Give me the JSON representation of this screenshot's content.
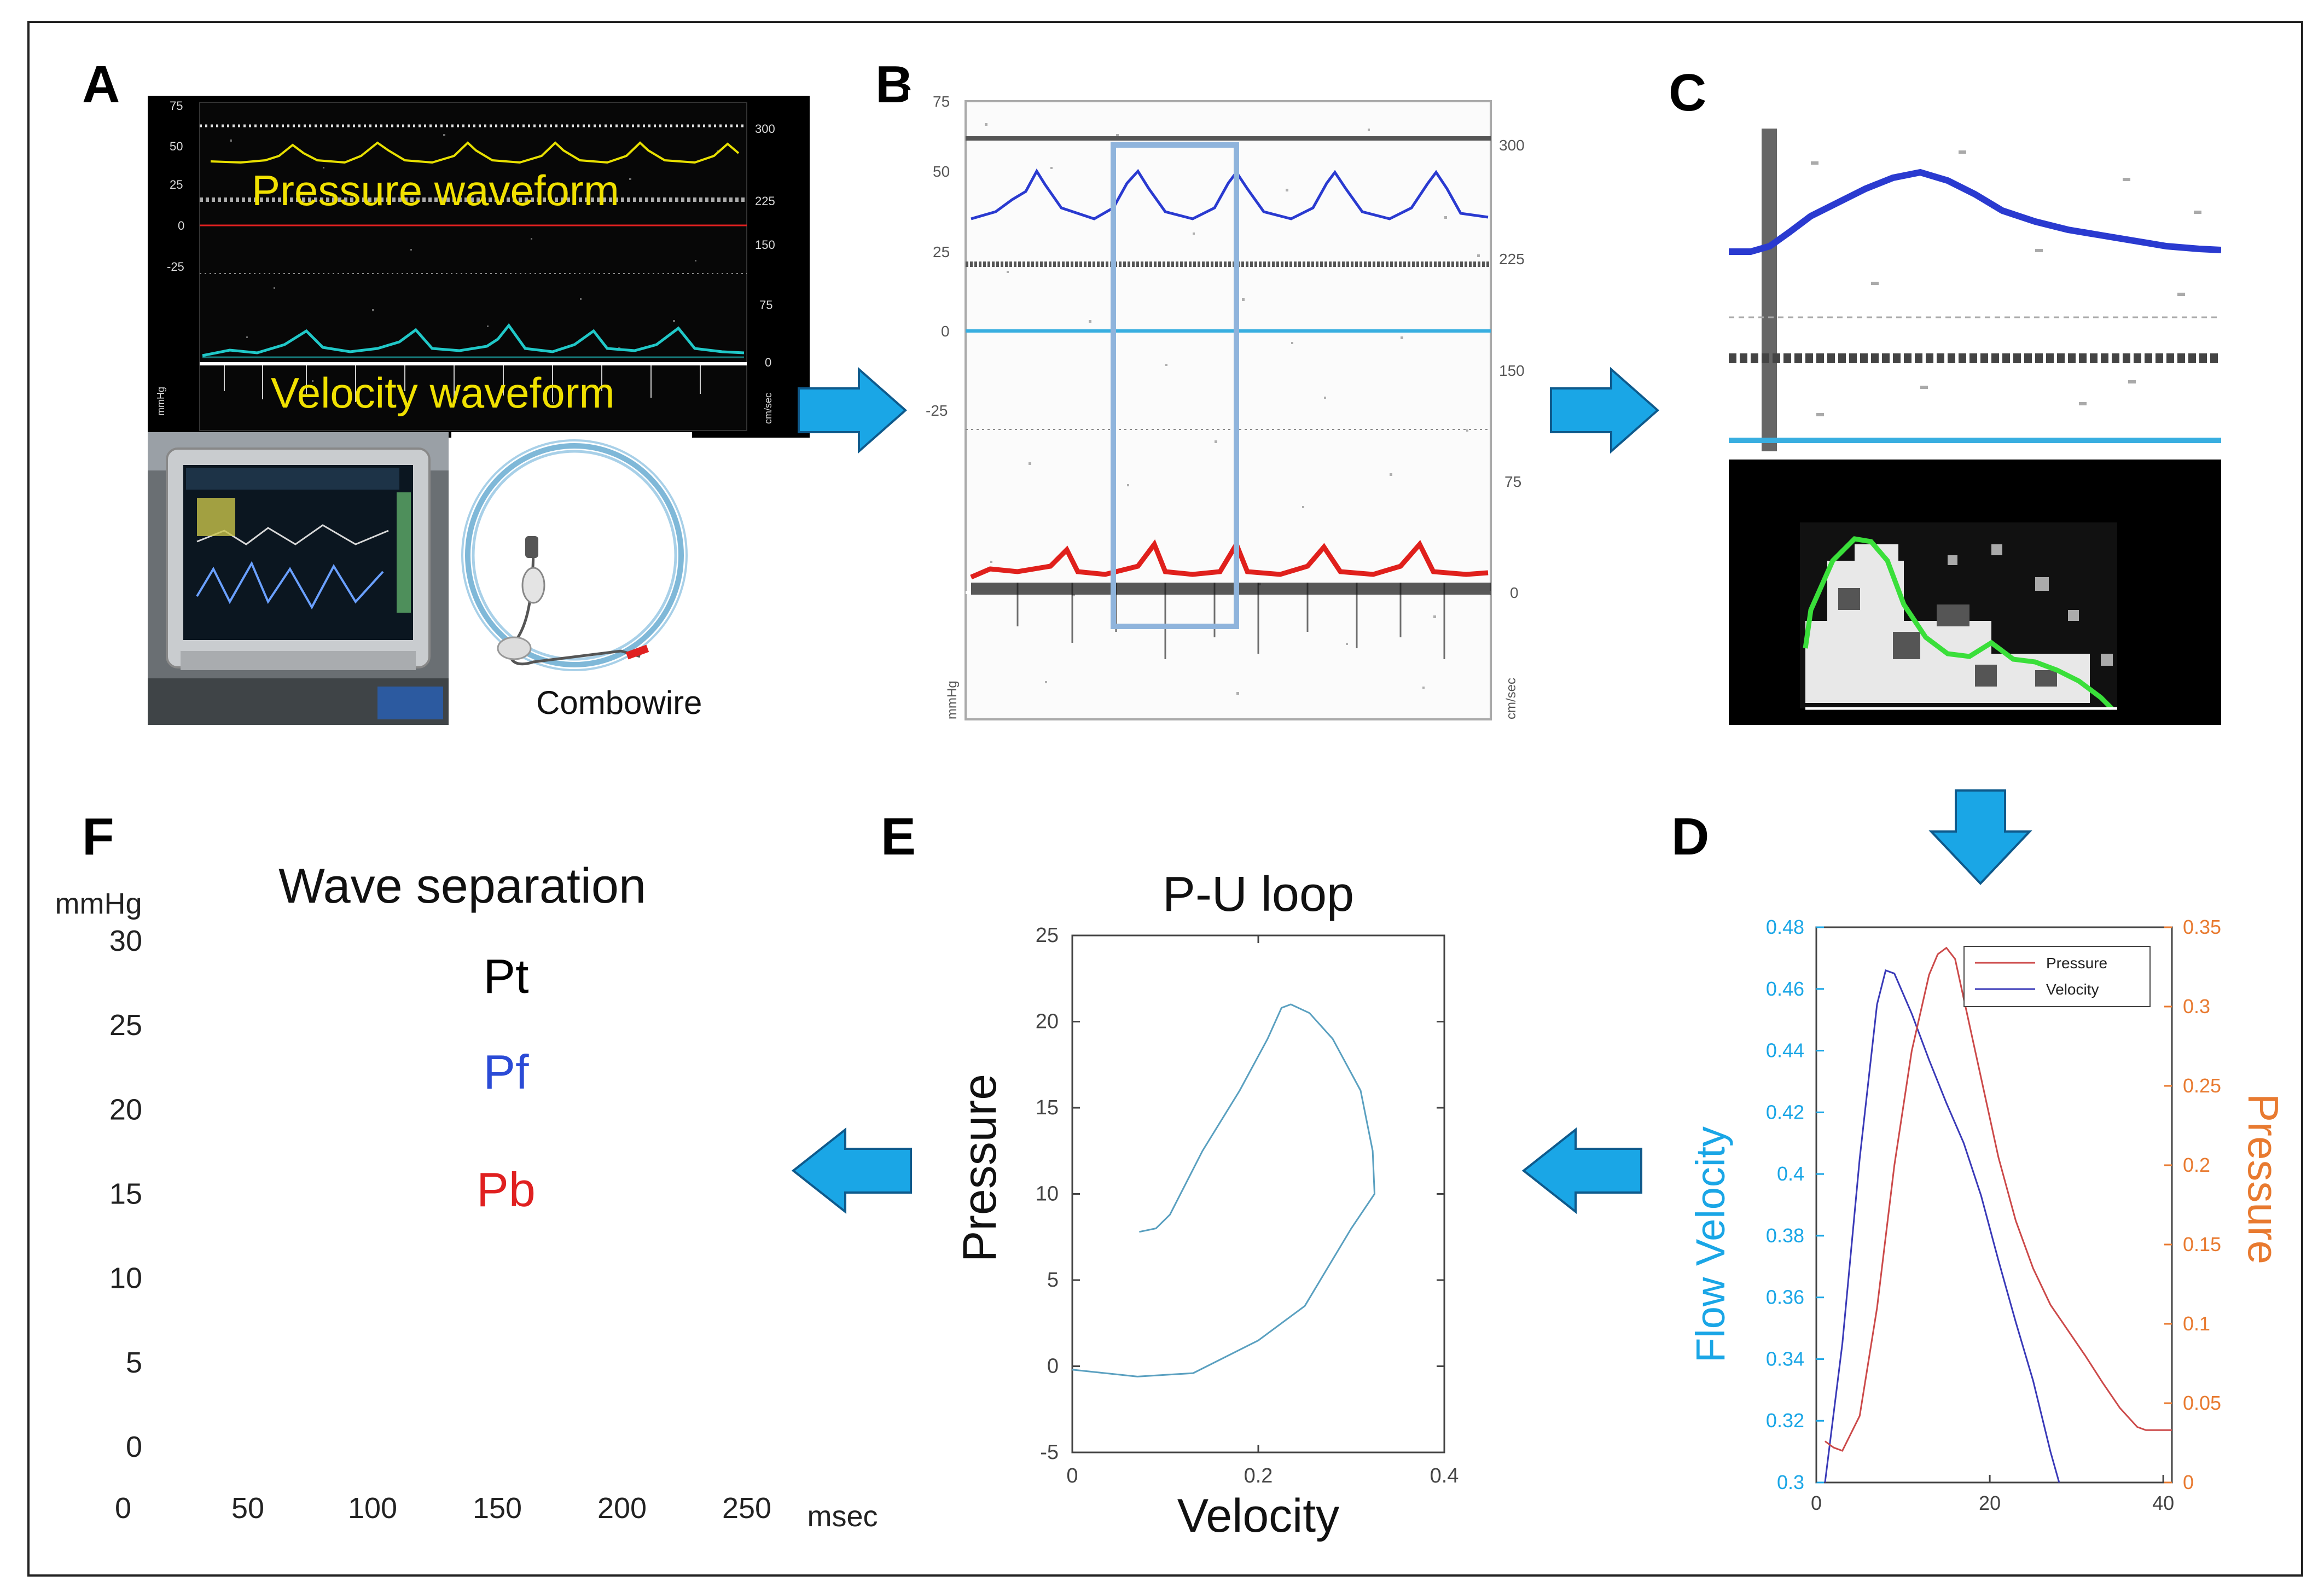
{
  "panels": {
    "a": "A",
    "b": "B",
    "c": "C",
    "d": "D",
    "e": "E",
    "f": "F"
  },
  "panel_a": {
    "label_pressure": "Pressure waveform",
    "label_velocity": "Velocity waveform",
    "left_ticks": [
      "75",
      "50",
      "25",
      "0",
      "-25"
    ],
    "right_ticks": [
      "300",
      "225",
      "150",
      "75",
      "0"
    ],
    "left_unit": "mmHg",
    "right_unit": "cm/sec",
    "device_label": "Combowire"
  },
  "panel_b": {
    "left_ticks": [
      "75",
      "50",
      "25",
      "0",
      "-25"
    ],
    "right_ticks": [
      "300",
      "225",
      "150",
      "75",
      "0"
    ],
    "left_unit": "mmHg",
    "right_unit": "cm/sec"
  },
  "chart_data": [
    {
      "type": "line",
      "panel": "D",
      "title": "",
      "xlabel": "",
      "ylabel_left": "Flow Velocity",
      "ylabel_right": "Pressure",
      "x_ticks": [
        "0",
        "20",
        "40"
      ],
      "y_left_ticks": [
        "0.48",
        "0.46",
        "0.44",
        "0.42",
        "0.4",
        "0.38",
        "0.36",
        "0.34",
        "0.32",
        "0.3"
      ],
      "y_right_ticks": [
        "0.35",
        "0.3",
        "0.25",
        "0.2",
        "0.15",
        "0.1",
        "0.05",
        "0"
      ],
      "xlim": [
        0,
        41
      ],
      "ylim_left": [
        0.3,
        0.48
      ],
      "ylim_right": [
        0,
        0.35
      ],
      "legend": [
        "Pressure",
        "Velocity"
      ],
      "series": [
        {
          "name": "Velocity",
          "axis": "left",
          "color": "#3a3ab8",
          "x": [
            1,
            3,
            5,
            7,
            8,
            9,
            11,
            13,
            15,
            17,
            19,
            21,
            23,
            25,
            27,
            28
          ],
          "y": [
            0.3,
            0.345,
            0.405,
            0.455,
            0.466,
            0.465,
            0.452,
            0.437,
            0.423,
            0.41,
            0.393,
            0.372,
            0.352,
            0.333,
            0.31,
            0.3
          ]
        },
        {
          "name": "Pressure",
          "axis": "right",
          "color": "#cc4a4a",
          "x": [
            1,
            2,
            3,
            5,
            7,
            9,
            11,
            13,
            14,
            15,
            16,
            17,
            19,
            21,
            23,
            25,
            27,
            29,
            31,
            33,
            35,
            37,
            38,
            39,
            41
          ],
          "y": [
            0.026,
            0.022,
            0.02,
            0.042,
            0.11,
            0.2,
            0.272,
            0.32,
            0.333,
            0.337,
            0.33,
            0.305,
            0.255,
            0.205,
            0.165,
            0.135,
            0.112,
            0.096,
            0.08,
            0.063,
            0.047,
            0.035,
            0.033,
            0.033,
            0.033
          ]
        }
      ]
    },
    {
      "type": "line",
      "panel": "E",
      "title": "P-U loop",
      "xlabel": "Velocity",
      "ylabel": "Pressure",
      "x_ticks": [
        "0",
        "0.2",
        "0.4"
      ],
      "y_ticks": [
        "25",
        "20",
        "15",
        "10",
        "5",
        "0",
        "-5"
      ],
      "xlim": [
        0,
        0.4
      ],
      "ylim": [
        -5,
        25
      ],
      "series": [
        {
          "name": "P-U loop",
          "color": "#5aa0c0",
          "x": [
            0,
            0.07,
            0.13,
            0.2,
            0.25,
            0.3,
            0.325,
            0.323,
            0.31,
            0.28,
            0.255,
            0.235,
            0.225,
            0.21,
            0.18,
            0.14,
            0.105,
            0.09,
            0.072
          ],
          "y": [
            -0.2,
            -0.6,
            -0.4,
            1.5,
            3.5,
            8.0,
            10.0,
            12.5,
            16.0,
            19.0,
            20.5,
            21.0,
            20.8,
            19.0,
            16.0,
            12.5,
            8.8,
            8.0,
            7.8
          ]
        }
      ]
    },
    {
      "type": "line",
      "panel": "F",
      "title": "Wave separation",
      "xlabel": "msec",
      "ylabel": "mmHg",
      "x_ticks": [
        "0",
        "50",
        "100",
        "150",
        "200",
        "250"
      ],
      "y_ticks": [
        "30",
        "25",
        "20",
        "15",
        "10",
        "5",
        "0"
      ],
      "xlim": [
        0,
        250
      ],
      "ylim": [
        0,
        30
      ],
      "legend": [
        {
          "label": "Pt",
          "color": "#000000"
        },
        {
          "label": "Pf",
          "color": "#2b4bd6"
        },
        {
          "label": "Pb",
          "color": "#e02020"
        }
      ],
      "series": []
    }
  ],
  "colors": {
    "arrow": "#1aa6e6",
    "arrow_stroke": "#0e5a8c",
    "pressure_trace": "#e8e000",
    "velocity_trace": "#20c8c8",
    "blue_trace": "#2a3ad0",
    "red_trace": "#e0201c"
  }
}
